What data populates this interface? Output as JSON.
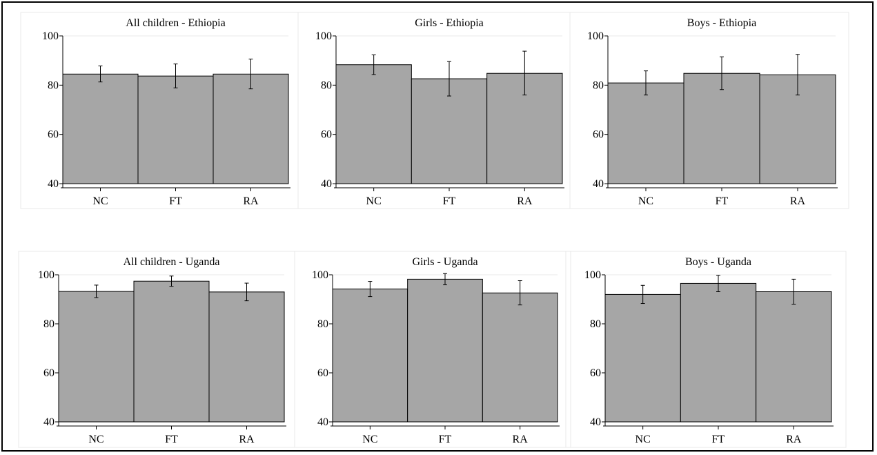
{
  "chart_data": [
    {
      "type": "bar",
      "title": "All children  - Ethiopia",
      "categories": [
        "NC",
        "FT",
        "RA"
      ],
      "values": [
        84.5,
        83.7,
        84.5
      ],
      "error_low": [
        81.3,
        78.9,
        78.5
      ],
      "error_high": [
        87.8,
        88.6,
        90.6
      ],
      "ylim": [
        40,
        100
      ],
      "yticks": [
        40,
        60,
        80,
        100
      ],
      "bar_color": "#a6a6a6",
      "grid": true
    },
    {
      "type": "bar",
      "title": "Girls - Ethiopia",
      "categories": [
        "NC",
        "FT",
        "RA"
      ],
      "values": [
        88.3,
        82.6,
        84.8
      ],
      "error_low": [
        84.3,
        75.6,
        76.0
      ],
      "error_high": [
        92.3,
        89.6,
        93.8
      ],
      "ylim": [
        40,
        100
      ],
      "yticks": [
        40,
        60,
        80,
        100
      ],
      "bar_color": "#a6a6a6",
      "grid": true
    },
    {
      "type": "bar",
      "title": "Boys - Ethiopia",
      "categories": [
        "NC",
        "FT",
        "RA"
      ],
      "values": [
        80.9,
        84.8,
        84.2
      ],
      "error_low": [
        76.0,
        78.2,
        76.0
      ],
      "error_high": [
        85.8,
        91.5,
        92.5
      ],
      "ylim": [
        40,
        100
      ],
      "yticks": [
        40,
        60,
        80,
        100
      ],
      "bar_color": "#a6a6a6",
      "grid": true
    },
    {
      "type": "bar",
      "title": "All children - Uganda",
      "categories": [
        "NC",
        "FT",
        "RA"
      ],
      "values": [
        93.2,
        97.4,
        93.0
      ],
      "error_low": [
        90.7,
        95.3,
        89.4
      ],
      "error_high": [
        95.8,
        99.5,
        96.6
      ],
      "ylim": [
        40,
        100
      ],
      "yticks": [
        40,
        60,
        80,
        100
      ],
      "bar_color": "#a6a6a6",
      "grid": true
    },
    {
      "type": "bar",
      "title": "Girls - Uganda",
      "categories": [
        "NC",
        "FT",
        "RA"
      ],
      "values": [
        94.2,
        98.2,
        92.6
      ],
      "error_low": [
        91.1,
        95.9,
        87.7
      ],
      "error_high": [
        97.3,
        100.5,
        97.6
      ],
      "ylim": [
        40,
        100
      ],
      "yticks": [
        40,
        60,
        80,
        100
      ],
      "bar_color": "#a6a6a6",
      "grid": true
    },
    {
      "type": "bar",
      "title": "Boys - Uganda",
      "categories": [
        "NC",
        "FT",
        "RA"
      ],
      "values": [
        92.0,
        96.5,
        93.1
      ],
      "error_low": [
        88.3,
        93.1,
        88.0
      ],
      "error_high": [
        95.7,
        99.8,
        98.2
      ],
      "ylim": [
        40,
        100
      ],
      "yticks": [
        40,
        60,
        80,
        100
      ],
      "bar_color": "#a6a6a6",
      "grid": true
    }
  ]
}
